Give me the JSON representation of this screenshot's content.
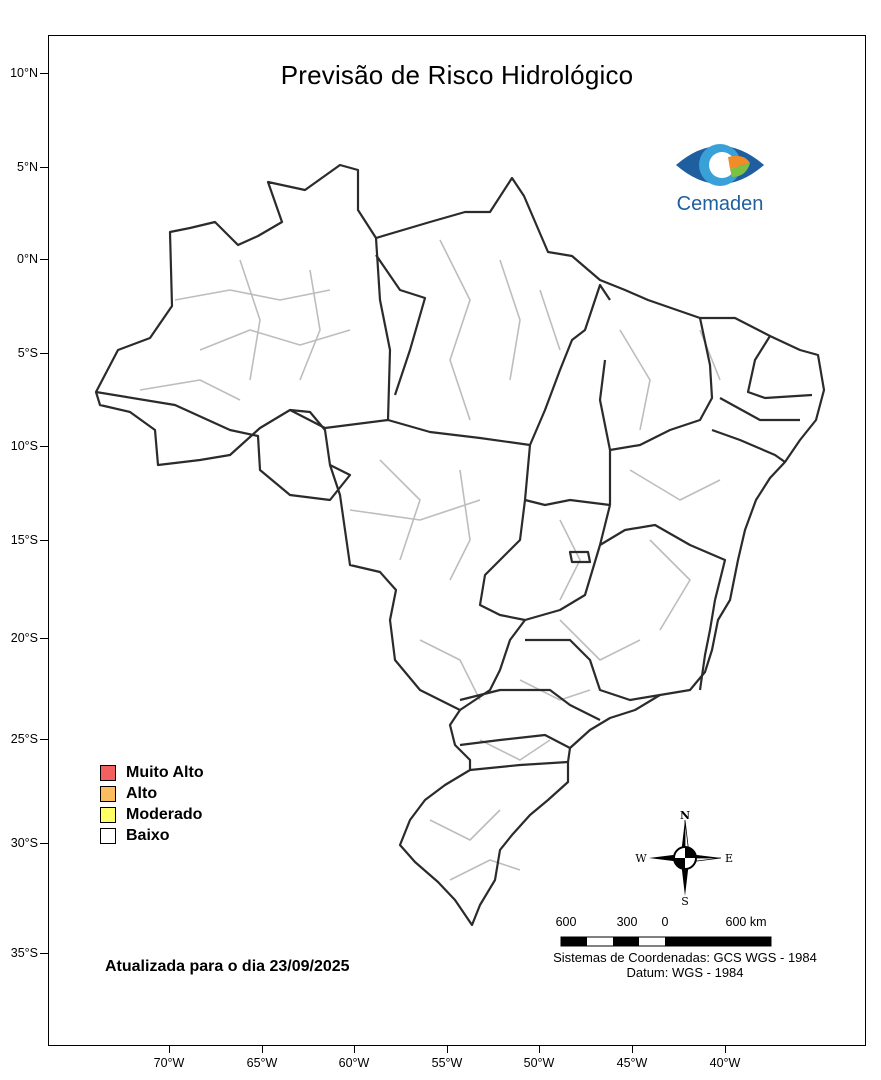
{
  "title": "Previsão de Risco Hidrológico",
  "logo": {
    "text": "Cemaden",
    "icon": "cemaden-eye-icon",
    "colors": [
      "#1f5fa0",
      "#3aa0d8",
      "#f28c28",
      "#7cc242"
    ]
  },
  "axes": {
    "lat_labels": [
      "10°N",
      "5°N",
      "0°N",
      "5°S",
      "10°S",
      "15°S",
      "20°S",
      "25°S",
      "30°S",
      "35°S"
    ],
    "lon_labels": [
      "70°W",
      "65°W",
      "60°W",
      "55°W",
      "50°W",
      "45°W",
      "40°W"
    ]
  },
  "legend": {
    "items": [
      {
        "label": "Muito Alto",
        "color": "#f26060"
      },
      {
        "label": "Alto",
        "color": "#fbbd5e"
      },
      {
        "label": "Moderado",
        "color": "#ffff66"
      },
      {
        "label": "Baixo",
        "color": "#ffffff"
      }
    ]
  },
  "updated": "Atualizada para o dia 23/09/2025",
  "scale": {
    "labels": [
      "600",
      "300",
      "0",
      "600 km"
    ]
  },
  "compass": {
    "n": "N",
    "s": "S",
    "e": "E",
    "w": "W"
  },
  "crs": {
    "line1": "Sistemas de Coordenadas: GCS WGS - 1984",
    "line2": "Datum: WGS - 1984"
  }
}
